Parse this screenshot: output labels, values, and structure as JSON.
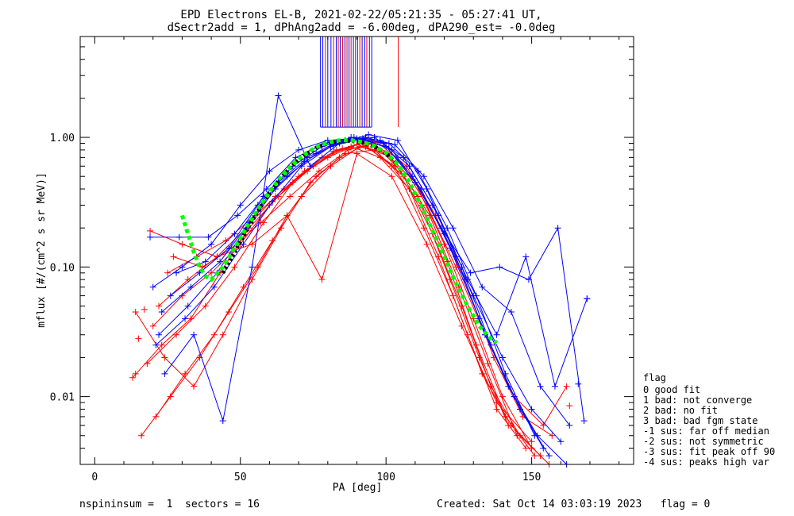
{
  "header": {
    "title_line1": "EPD Electrons EL-B, 2021-02-22/05:21:35 - 05:27:41 UT,",
    "title_line2": "dSectr2add = 1, dPhAng2add = -6.00deg, dPA290_est=  -0.0deg"
  },
  "footer": {
    "left": "nspininsum =  1  sectors = 16",
    "right": "Created: Sat Oct 14 03:03:19 2023   flag = 0"
  },
  "legend": {
    "title": "flag",
    "items": [
      " 0 good fit",
      " 1 bad: not converge",
      " 2 bad: no fit",
      " 3 bad: bad fgm state",
      "-1 sus: far off median",
      "-2 sus: not symmetric",
      "-3 sus: fit peak off 90",
      "-4 sus: peaks high var"
    ]
  },
  "colors": {
    "series_a": "#ff0000",
    "series_b": "#0000ff",
    "fit_dotted": "#00ff00",
    "fit_core": "#000000"
  },
  "chart_data": {
    "type": "line",
    "xlabel": "PA [deg]",
    "ylabel": "mflux [#/(cm^2 s sr MeV)]",
    "xlim": [
      -5,
      185
    ],
    "ylim": [
      0.003,
      6.0
    ],
    "ylog": true,
    "xticks": [
      0,
      50,
      100,
      150
    ],
    "yticks": [
      {
        "v": 0.01,
        "label": "0.01"
      },
      {
        "v": 0.1,
        "label": "0.10"
      },
      {
        "v": 1.0,
        "label": "1.00"
      }
    ],
    "grid": false,
    "legend_position": "outside-right",
    "series": [
      {
        "color": "red",
        "pa": [
          13,
          23,
          33,
          43,
          53,
          63,
          73,
          83,
          93,
          103,
          113,
          123,
          133,
          143,
          153
        ],
        "flux": [
          0.014,
          0.025,
          0.04,
          0.09,
          0.2,
          0.35,
          0.55,
          0.8,
          0.85,
          0.6,
          0.2,
          0.06,
          0.015,
          0.006,
          0.0035
        ]
      },
      {
        "color": "red",
        "pa": [
          18,
          28,
          38,
          48,
          58,
          68,
          78,
          88,
          98,
          108,
          118,
          128,
          138,
          148
        ],
        "flux": [
          0.018,
          0.03,
          0.05,
          0.1,
          0.22,
          0.45,
          0.7,
          0.85,
          0.7,
          0.4,
          0.12,
          0.03,
          0.008,
          0.004
        ]
      },
      {
        "color": "red",
        "pa": [
          19,
          30,
          42,
          54,
          66,
          78,
          90,
          102,
          114,
          126,
          138,
          150
        ],
        "flux": [
          0.19,
          0.15,
          0.12,
          0.15,
          0.25,
          0.08,
          0.75,
          0.5,
          0.15,
          0.035,
          0.009,
          0.0045
        ]
      },
      {
        "color": "red",
        "pa": [
          16,
          26,
          36,
          46,
          56,
          66,
          76,
          86,
          96,
          106,
          116,
          126,
          136,
          146,
          156
        ],
        "flux": [
          0.005,
          0.01,
          0.02,
          0.045,
          0.1,
          0.25,
          0.5,
          0.75,
          0.8,
          0.5,
          0.18,
          0.05,
          0.012,
          0.005,
          0.003
        ]
      },
      {
        "color": "red",
        "pa": [
          22,
          32,
          42,
          52,
          62,
          72,
          82,
          92,
          102,
          112,
          122,
          132,
          142
        ],
        "flux": [
          0.05,
          0.08,
          0.12,
          0.2,
          0.35,
          0.55,
          0.78,
          0.9,
          0.6,
          0.3,
          0.08,
          0.02,
          0.006
        ]
      },
      {
        "color": "red",
        "pa": [
          20,
          30,
          40,
          50,
          60,
          70,
          80,
          90,
          100,
          110,
          120,
          130,
          140,
          150
        ],
        "flux": [
          0.035,
          0.06,
          0.09,
          0.15,
          0.3,
          0.5,
          0.7,
          0.88,
          0.75,
          0.45,
          0.15,
          0.04,
          0.01,
          0.004
        ]
      },
      {
        "color": "red",
        "pa": [
          25,
          35,
          45,
          55,
          65,
          75,
          85,
          95,
          105,
          115,
          125,
          135,
          145
        ],
        "flux": [
          0.09,
          0.12,
          0.16,
          0.25,
          0.4,
          0.6,
          0.82,
          0.95,
          0.55,
          0.25,
          0.07,
          0.018,
          0.005
        ]
      },
      {
        "color": "red",
        "pa": [
          14,
          24,
          34,
          44,
          54,
          64,
          74,
          84,
          94,
          104,
          114,
          124,
          134,
          144,
          154,
          162
        ],
        "flux": [
          0.045,
          0.02,
          0.012,
          0.03,
          0.08,
          0.2,
          0.45,
          0.7,
          0.9,
          0.7,
          0.3,
          0.1,
          0.03,
          0.01,
          0.006,
          0.012
        ]
      },
      {
        "color": "red",
        "pa": [
          21,
          31,
          41,
          51,
          61,
          71,
          81,
          91,
          101,
          111,
          121,
          131,
          141,
          151
        ],
        "flux": [
          0.007,
          0.015,
          0.03,
          0.07,
          0.16,
          0.35,
          0.6,
          0.85,
          0.72,
          0.35,
          0.11,
          0.025,
          0.007,
          0.0035
        ]
      },
      {
        "color": "red",
        "pa": [
          27,
          37,
          47,
          57,
          67,
          77,
          87,
          97,
          107,
          117,
          127,
          137,
          147,
          157
        ],
        "flux": [
          0.12,
          0.1,
          0.14,
          0.22,
          0.35,
          0.55,
          0.8,
          0.92,
          0.6,
          0.25,
          0.08,
          0.02,
          0.007,
          0.005
        ]
      },
      {
        "color": "blue",
        "pa": [
          20,
          30,
          40,
          50,
          60,
          70,
          80,
          90,
          100,
          110,
          120,
          130,
          140,
          150,
          160
        ],
        "flux": [
          0.07,
          0.1,
          0.15,
          0.3,
          0.55,
          0.8,
          0.95,
          0.98,
          0.85,
          0.45,
          0.18,
          0.06,
          0.02,
          0.008,
          0.0045
        ]
      },
      {
        "color": "blue",
        "pa": [
          19,
          29,
          39,
          49,
          59,
          69,
          79,
          89,
          99,
          109,
          119,
          129,
          139,
          149,
          159,
          168
        ],
        "flux": [
          0.17,
          0.17,
          0.17,
          0.25,
          0.4,
          0.7,
          0.9,
          1.0,
          0.9,
          0.5,
          0.2,
          0.09,
          0.1,
          0.08,
          0.2,
          0.0065
        ]
      },
      {
        "color": "blue",
        "pa": [
          22,
          32,
          42,
          52,
          62,
          72,
          82,
          92,
          102,
          112,
          122,
          132,
          142,
          152,
          162
        ],
        "flux": [
          0.03,
          0.05,
          0.09,
          0.2,
          0.4,
          0.65,
          0.88,
          0.98,
          0.8,
          0.4,
          0.14,
          0.04,
          0.012,
          0.005,
          0.003
        ]
      },
      {
        "color": "blue",
        "pa": [
          24,
          34,
          44,
          54,
          63,
          74,
          84,
          94,
          104,
          114,
          124,
          134,
          144,
          154
        ],
        "flux": [
          0.015,
          0.03,
          0.0065,
          0.1,
          2.1,
          0.6,
          0.9,
          1.05,
          0.95,
          0.4,
          0.12,
          0.03,
          0.01,
          0.004
        ]
      },
      {
        "color": "blue",
        "pa": [
          26,
          36,
          46,
          56,
          66,
          76,
          86,
          96,
          106,
          116,
          126,
          136,
          146,
          156
        ],
        "flux": [
          0.06,
          0.09,
          0.14,
          0.3,
          0.5,
          0.75,
          0.95,
          1.0,
          0.7,
          0.3,
          0.1,
          0.025,
          0.008,
          0.0035
        ]
      },
      {
        "color": "blue",
        "pa": [
          23,
          33,
          43,
          53,
          63,
          73,
          83,
          93,
          103,
          113,
          123,
          133,
          143,
          153,
          163
        ],
        "flux": [
          0.045,
          0.07,
          0.11,
          0.22,
          0.45,
          0.7,
          0.92,
          1.0,
          0.88,
          0.5,
          0.2,
          0.07,
          0.045,
          0.012,
          0.006
        ]
      },
      {
        "color": "blue",
        "pa": [
          21,
          31,
          41,
          51,
          61,
          71,
          81,
          91,
          101,
          111,
          121,
          131,
          141,
          151
        ],
        "flux": [
          0.025,
          0.04,
          0.07,
          0.15,
          0.32,
          0.6,
          0.85,
          0.97,
          0.9,
          0.55,
          0.2,
          0.06,
          0.015,
          0.005
        ]
      },
      {
        "color": "blue",
        "pa": [
          28,
          38,
          48,
          58,
          68,
          78,
          88,
          98,
          108,
          118,
          128,
          138,
          148,
          158,
          169
        ],
        "flux": [
          0.09,
          0.11,
          0.18,
          0.35,
          0.6,
          0.85,
          1.0,
          0.95,
          0.6,
          0.25,
          0.08,
          0.03,
          0.12,
          0.012,
          0.057
        ]
      }
    ],
    "fit_curve": {
      "pa": [
        30,
        32,
        34,
        36,
        38,
        40,
        44,
        48,
        52,
        56,
        60,
        64,
        68,
        72,
        76,
        80,
        84,
        88,
        92,
        96,
        100,
        104,
        108,
        112,
        116,
        120,
        124,
        128,
        132,
        136,
        138
      ],
      "flux": [
        0.25,
        0.18,
        0.13,
        0.1,
        0.085,
        0.08,
        0.1,
        0.14,
        0.2,
        0.28,
        0.38,
        0.5,
        0.62,
        0.74,
        0.84,
        0.91,
        0.95,
        0.95,
        0.92,
        0.86,
        0.76,
        0.62,
        0.45,
        0.3,
        0.19,
        0.12,
        0.075,
        0.05,
        0.035,
        0.028,
        0.026
      ]
    },
    "fit_core": {
      "pa": [
        44,
        48,
        52,
        56,
        60,
        64,
        68,
        72,
        76,
        80,
        84,
        88,
        92,
        96,
        100,
        104
      ],
      "flux": [
        0.09,
        0.13,
        0.19,
        0.27,
        0.37,
        0.49,
        0.61,
        0.73,
        0.83,
        0.9,
        0.94,
        0.94,
        0.91,
        0.85,
        0.75,
        0.62
      ]
    },
    "extra_markers": [
      {
        "color": "blue",
        "pa": 169,
        "flux": 0.057
      },
      {
        "color": "blue",
        "pa": 166,
        "flux": 0.0125
      },
      {
        "color": "red",
        "pa": 163,
        "flux": 0.0085
      },
      {
        "color": "red",
        "pa": 14,
        "flux": 0.015
      },
      {
        "color": "red",
        "pa": 17,
        "flux": 0.047
      },
      {
        "color": "red",
        "pa": 15,
        "flux": 0.028
      }
    ],
    "top_bars": [
      {
        "color": "blue",
        "pa": 77.5
      },
      {
        "color": "blue",
        "pa": 78.3
      },
      {
        "color": "red",
        "pa": 79.2
      },
      {
        "color": "blue",
        "pa": 80.0
      },
      {
        "color": "blue",
        "pa": 81.1
      },
      {
        "color": "red",
        "pa": 82.0
      },
      {
        "color": "blue",
        "pa": 82.9
      },
      {
        "color": "red",
        "pa": 83.6
      },
      {
        "color": "blue",
        "pa": 84.3
      },
      {
        "color": "red",
        "pa": 85.1
      },
      {
        "color": "blue",
        "pa": 85.9
      },
      {
        "color": "red",
        "pa": 86.6
      },
      {
        "color": "blue",
        "pa": 87.3
      },
      {
        "color": "red",
        "pa": 88.0
      },
      {
        "color": "blue",
        "pa": 88.8
      },
      {
        "color": "red",
        "pa": 89.5
      },
      {
        "color": "blue",
        "pa": 90.2
      },
      {
        "color": "red",
        "pa": 91.0
      },
      {
        "color": "blue",
        "pa": 91.8
      },
      {
        "color": "blue",
        "pa": 92.7
      },
      {
        "color": "red",
        "pa": 93.4
      },
      {
        "color": "blue",
        "pa": 94.3
      },
      {
        "color": "blue",
        "pa": 95.1
      },
      {
        "color": "red",
        "pa": 104.2
      }
    ],
    "top_bars_bottom_flux": 1.2
  }
}
